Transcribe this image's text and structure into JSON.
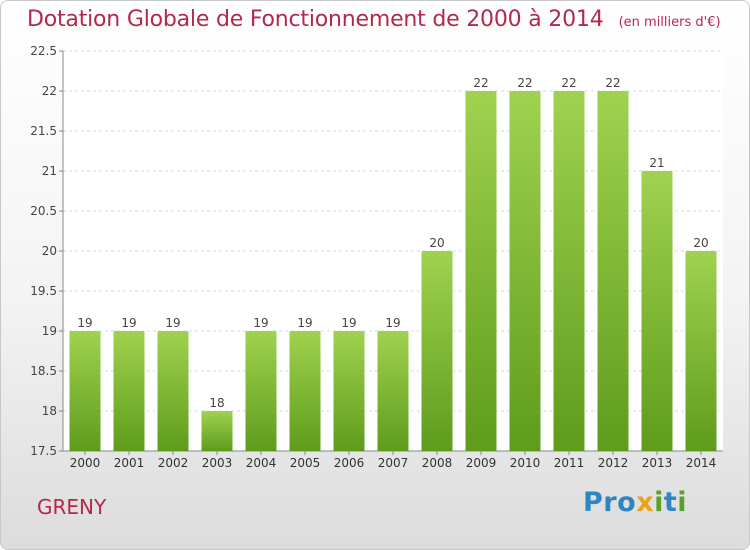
{
  "header": {
    "title": "Dotation Globale de Fonctionnement de 2000 à 2014",
    "unit": "(en milliers d'€)"
  },
  "footer": {
    "commune": "GRENY"
  },
  "logo": {
    "text": "Proxiti",
    "letters": [
      {
        "ch": "P",
        "color": "#2e86c1"
      },
      {
        "ch": "r",
        "color": "#2e86c1"
      },
      {
        "ch": "o",
        "color": "#2e86c1"
      },
      {
        "ch": "x",
        "color": "#e8a317"
      },
      {
        "ch": "i",
        "color": "#5aa02c"
      },
      {
        "ch": "t",
        "color": "#2e86c1"
      },
      {
        "ch": "i",
        "color": "#5aa02c"
      }
    ]
  },
  "colors": {
    "bar_top": "#9fd24f",
    "bar_bottom": "#5f9c1c",
    "title": "#b5284d",
    "axis": "#888888",
    "grid": "#d8d8d8"
  },
  "chart_data": {
    "type": "bar",
    "title": "Dotation Globale de Fonctionnement de 2000 à 2014",
    "categories": [
      "2000",
      "2001",
      "2002",
      "2003",
      "2004",
      "2005",
      "2006",
      "2007",
      "2008",
      "2009",
      "2010",
      "2011",
      "2012",
      "2013",
      "2014"
    ],
    "values": [
      19,
      19,
      19,
      18,
      19,
      19,
      19,
      19,
      20,
      22,
      22,
      22,
      22,
      21,
      20
    ],
    "data_labels": [
      "19",
      "19",
      "19",
      "18",
      "19",
      "19",
      "19",
      "19",
      "20",
      "22",
      "22",
      "22",
      "22",
      "21",
      "20"
    ],
    "ylim": [
      17.5,
      22.5
    ],
    "yticks": [
      "17.5",
      "18",
      "18.5",
      "19",
      "19.5",
      "20",
      "20.5",
      "21",
      "21.5",
      "22",
      "22.5"
    ],
    "grid": true,
    "xlabel": "",
    "ylabel": ""
  }
}
